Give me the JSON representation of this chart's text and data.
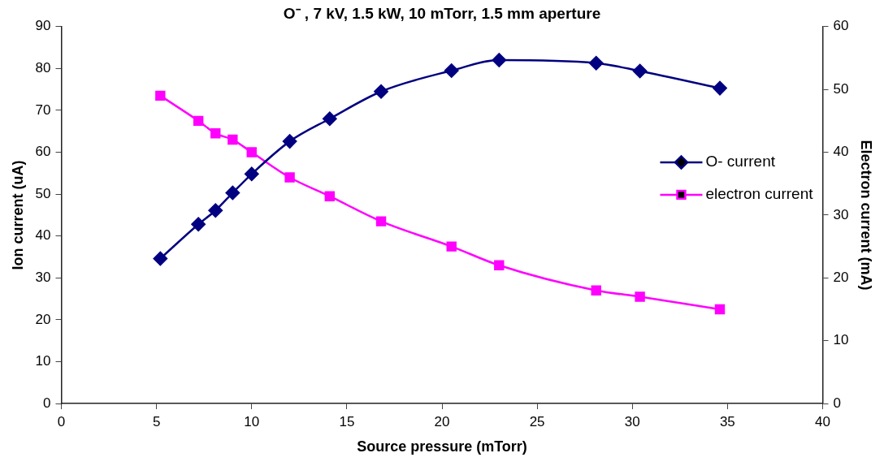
{
  "chart_data": {
    "type": "line",
    "title": "O⁻ , 7 kV, 1.5 kW, 10 mTorr, 1.5 mm aperture",
    "xlabel": "Source pressure (mTorr)",
    "ylabel": "Ion current (uA)",
    "y2label": "Electron current (mA)",
    "xlim": [
      0,
      40
    ],
    "xticks": [
      0,
      5,
      10,
      15,
      20,
      25,
      30,
      35,
      40
    ],
    "ylim": [
      0,
      90
    ],
    "yticks": [
      0,
      10,
      20,
      30,
      40,
      50,
      60,
      70,
      80,
      90
    ],
    "y2lim": [
      0,
      60
    ],
    "y2ticks": [
      0,
      10,
      20,
      30,
      40,
      50,
      60
    ],
    "grid": false,
    "legend": "right",
    "series": [
      {
        "name": "O- current",
        "color": "#000080",
        "marker": "diamond",
        "x": [
          5.2,
          7.2,
          8.1,
          9,
          10,
          12,
          14.1,
          16.8,
          20.5,
          23,
          28.1,
          30.4,
          34.6
        ],
        "values": [
          34.6,
          42.8,
          46.1,
          50.3,
          54.8,
          62.6,
          68,
          74.5,
          79.5,
          82,
          81.3,
          79.4,
          75.3
        ]
      },
      {
        "name": "electron current",
        "color": "#ff00ff",
        "marker": "square",
        "axis": "y2",
        "x": [
          5.2,
          7.2,
          8.1,
          9,
          10,
          12,
          14.1,
          16.8,
          20.5,
          23,
          28.1,
          30.4,
          34.6
        ],
        "values": [
          49,
          45,
          43,
          42,
          40,
          36,
          33,
          29,
          25,
          22,
          18,
          17,
          15
        ]
      }
    ]
  }
}
